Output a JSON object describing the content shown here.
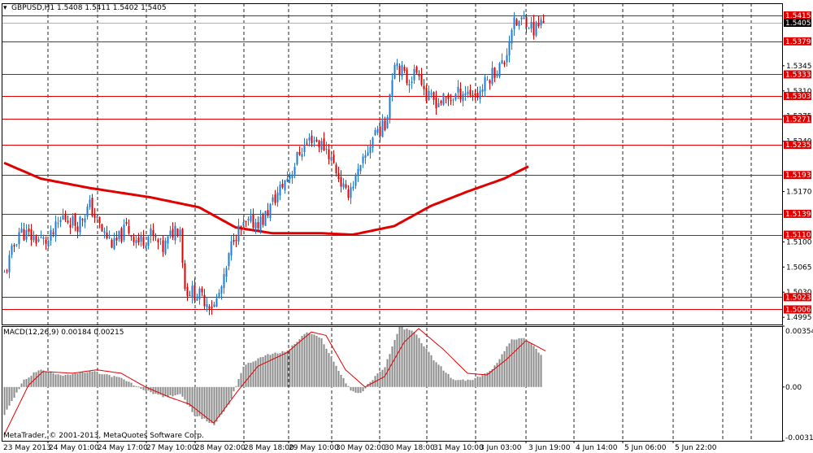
{
  "chart_data": {
    "type": "candlestick",
    "symbol_header": "GBPUSD,H1  1.5408 1.5411 1.5402 1.5405",
    "copyright": "MetaTrader, © 2001-2013, MetaQuotes Software Corp.",
    "price_axis": {
      "ylim": [
        1.4985,
        1.5432
      ],
      "ticks": [
        "1.5345",
        "1.5310",
        "1.5275",
        "1.5240",
        "1.5170",
        "1.5100",
        "1.5065",
        "1.5030",
        "1.4995"
      ]
    },
    "current_price": "1.5405",
    "horizontal_levels": [
      "1.5415",
      "1.5379",
      "1.5333",
      "1.5303",
      "1.5271",
      "1.5235",
      "1.5193",
      "1.5139",
      "1.5110",
      "1.5023",
      "1.5006"
    ],
    "time_labels": [
      "23 May 2013",
      "24 May 01:00",
      "24 May 17:00",
      "27 May 10:00",
      "28 May 02:00",
      "28 May 18:00",
      "29 May 10:00",
      "30 May 02:00",
      "30 May 18:00",
      "31 May 10:00",
      "3 Jun 03:00",
      "3 Jun 19:00",
      "4 Jun 14:00",
      "5 Jun 06:00",
      "5 Jun 22:00"
    ],
    "close_anchors": [
      [
        0,
        1.5055
      ],
      [
        6,
        1.5115
      ],
      [
        12,
        1.5105
      ],
      [
        18,
        1.51
      ],
      [
        24,
        1.5135
      ],
      [
        30,
        1.5125
      ],
      [
        35,
        1.515
      ],
      [
        40,
        1.5115
      ],
      [
        45,
        1.5095
      ],
      [
        50,
        1.512
      ],
      [
        55,
        1.51
      ],
      [
        60,
        1.511
      ],
      [
        65,
        1.509
      ],
      [
        70,
        1.512
      ],
      [
        72,
        1.512
      ],
      [
        74,
        1.5035
      ],
      [
        80,
        1.5025
      ],
      [
        86,
        1.501
      ],
      [
        90,
        1.5045
      ],
      [
        94,
        1.511
      ],
      [
        100,
        1.5125
      ],
      [
        106,
        1.513
      ],
      [
        110,
        1.5155
      ],
      [
        115,
        1.5185
      ],
      [
        118,
        1.52
      ],
      [
        121,
        1.5225
      ],
      [
        126,
        1.5245
      ],
      [
        132,
        1.523
      ],
      [
        136,
        1.52
      ],
      [
        140,
        1.5165
      ],
      [
        146,
        1.52
      ],
      [
        152,
        1.5255
      ],
      [
        156,
        1.526
      ],
      [
        160,
        1.5355
      ],
      [
        165,
        1.5325
      ],
      [
        170,
        1.534
      ],
      [
        173,
        1.53
      ],
      [
        178,
        1.5295
      ],
      [
        183,
        1.53
      ],
      [
        188,
        1.531
      ],
      [
        194,
        1.5305
      ],
      [
        200,
        1.5335
      ],
      [
        205,
        1.535
      ],
      [
        208,
        1.54
      ],
      [
        214,
        1.541
      ],
      [
        217,
        1.5395
      ],
      [
        220,
        1.5405
      ]
    ],
    "moving_average": {
      "color": "#e00000",
      "anchors": [
        [
          0,
          1.521
        ],
        [
          15,
          1.5188
        ],
        [
          35,
          1.5175
        ],
        [
          60,
          1.5162
        ],
        [
          80,
          1.5148
        ],
        [
          95,
          1.512
        ],
        [
          110,
          1.5112
        ],
        [
          130,
          1.5112
        ],
        [
          143,
          1.511
        ],
        [
          160,
          1.5122
        ],
        [
          175,
          1.515
        ],
        [
          190,
          1.517
        ],
        [
          205,
          1.5188
        ],
        [
          215,
          1.5205
        ]
      ]
    },
    "macd": {
      "label": "MACD(12,26,9) 0.00184 0.00215",
      "ylim": [
        -0.00313,
        0.00354
      ],
      "ticks": [
        "0.00354",
        "0.00",
        "-0.00313"
      ],
      "hist_anchors": [
        [
          0,
          -0.0016
        ],
        [
          8,
          0.0004
        ],
        [
          14,
          0.001
        ],
        [
          24,
          0.0007
        ],
        [
          36,
          0.0009
        ],
        [
          48,
          0.0005
        ],
        [
          56,
          -0.0001
        ],
        [
          66,
          -0.0006
        ],
        [
          72,
          -0.0004
        ],
        [
          78,
          -0.0016
        ],
        [
          86,
          -0.0022
        ],
        [
          92,
          -0.001
        ],
        [
          98,
          0.0012
        ],
        [
          106,
          0.0018
        ],
        [
          116,
          0.0021
        ],
        [
          124,
          0.0032
        ],
        [
          130,
          0.0028
        ],
        [
          136,
          0.0012
        ],
        [
          142,
          -0.0002
        ],
        [
          146,
          -0.0004
        ],
        [
          150,
          0.0003
        ],
        [
          156,
          0.0012
        ],
        [
          162,
          0.0035
        ],
        [
          168,
          0.0032
        ],
        [
          176,
          0.0016
        ],
        [
          184,
          0.0004
        ],
        [
          192,
          0.0004
        ],
        [
          200,
          0.001
        ],
        [
          208,
          0.0028
        ],
        [
          214,
          0.0028
        ],
        [
          220,
          0.0019
        ]
      ],
      "signal_anchors": [
        [
          0,
          -0.0028
        ],
        [
          10,
          0.0001
        ],
        [
          16,
          0.0009
        ],
        [
          28,
          0.0008
        ],
        [
          38,
          0.001
        ],
        [
          48,
          0.0008
        ],
        [
          58,
          0.0
        ],
        [
          68,
          -0.0006
        ],
        [
          76,
          -0.001
        ],
        [
          86,
          -0.0021
        ],
        [
          96,
          -0.0002
        ],
        [
          104,
          0.0012
        ],
        [
          116,
          0.002
        ],
        [
          126,
          0.0032
        ],
        [
          132,
          0.003
        ],
        [
          140,
          0.001
        ],
        [
          148,
          0.0
        ],
        [
          156,
          0.0006
        ],
        [
          164,
          0.0026
        ],
        [
          170,
          0.0034
        ],
        [
          180,
          0.0022
        ],
        [
          190,
          0.0008
        ],
        [
          198,
          0.0007
        ],
        [
          206,
          0.0016
        ],
        [
          214,
          0.0027
        ],
        [
          222,
          0.0021
        ]
      ]
    },
    "colors": {
      "bull": "#1e7bd6",
      "bear": "#e00000",
      "level": "#e00000",
      "label_bg": "#e00000",
      "current_bg": "#000000",
      "macd_bar": "#8a8a8a",
      "signal": "#e00000"
    }
  }
}
